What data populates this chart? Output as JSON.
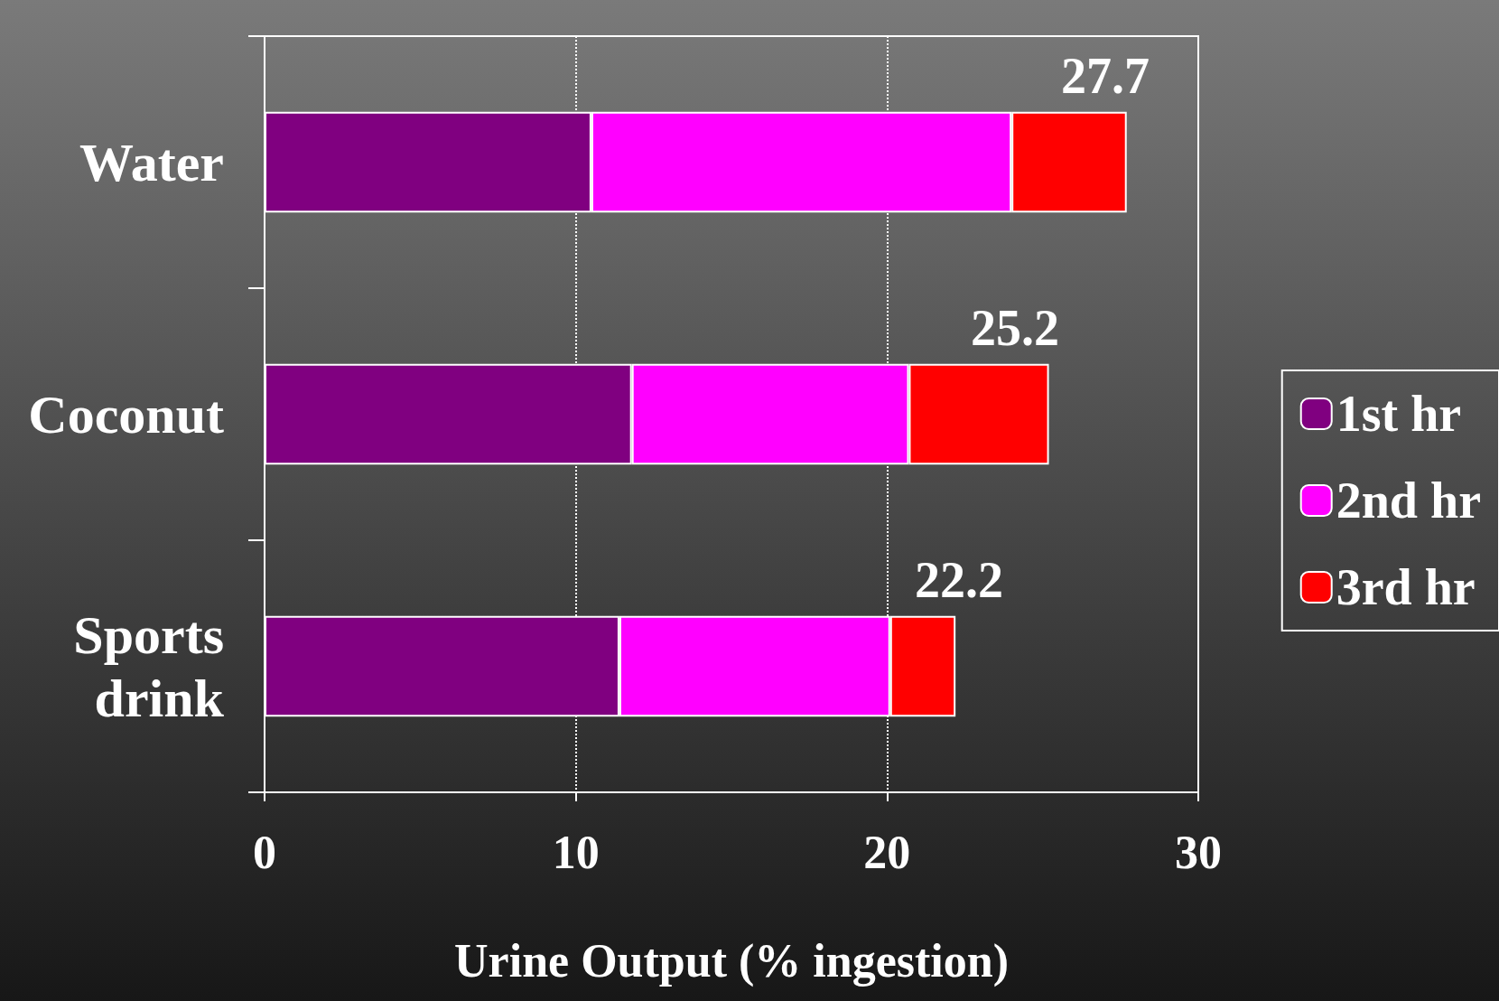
{
  "chart_data": {
    "type": "bar",
    "orientation": "horizontal",
    "stacked": true,
    "xlabel": "Urine Output (% ingestion)",
    "categories": [
      "Water",
      "Coconut",
      "Sports drink"
    ],
    "series": [
      {
        "name": "1st hr",
        "color": "#800080",
        "values": [
          10.5,
          11.8,
          11.4
        ]
      },
      {
        "name": "2nd hr",
        "color": "#ff00ff",
        "values": [
          13.5,
          8.9,
          8.7
        ]
      },
      {
        "name": "3rd hr",
        "color": "#ff0000",
        "values": [
          3.7,
          4.5,
          2.1
        ]
      }
    ],
    "totals": [
      "27.7",
      "25.2",
      "22.2"
    ],
    "xlim": [
      0,
      30
    ],
    "xticks": [
      0,
      10,
      20,
      30
    ],
    "grid": "x",
    "legend": "right"
  }
}
